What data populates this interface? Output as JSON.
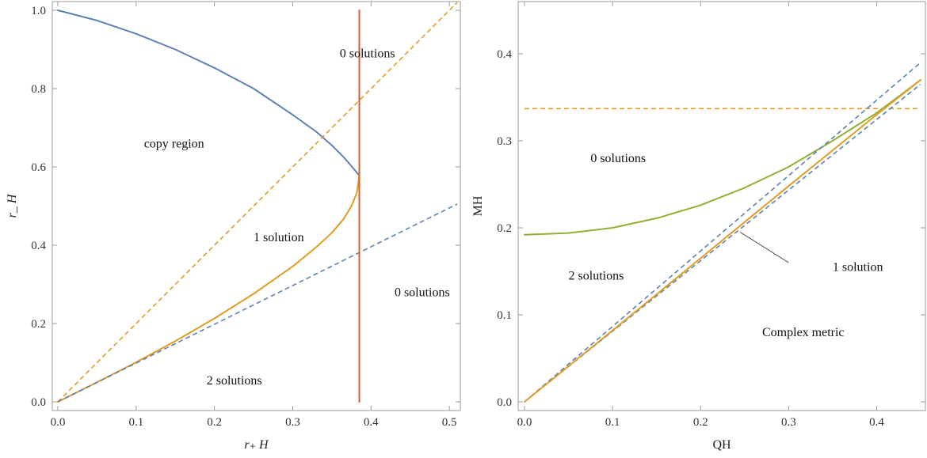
{
  "chart_data": [
    {
      "type": "line",
      "xlabel": "r₊ H",
      "ylabel": "r_ H",
      "xlim": [
        0,
        0.51
      ],
      "ylim": [
        0,
        1.0
      ],
      "xticks": [
        "0.0",
        "0.1",
        "0.2",
        "0.3",
        "0.4",
        "0.5"
      ],
      "yticks": [
        "0.0",
        "0.2",
        "0.4",
        "0.6",
        "0.8",
        "1.0"
      ],
      "series": [
        {
          "color": "#5e81b5",
          "style": "solid",
          "x": [
            0,
            0.05,
            0.1,
            0.15,
            0.2,
            0.25,
            0.3,
            0.33,
            0.35,
            0.365,
            0.375,
            0.382,
            0.385
          ],
          "y": [
            1.0,
            0.974,
            0.94,
            0.9,
            0.853,
            0.8,
            0.733,
            0.69,
            0.655,
            0.625,
            0.602,
            0.585,
            0.578
          ]
        },
        {
          "color": "#e19c24",
          "style": "solid",
          "x": [
            0,
            0.05,
            0.1,
            0.15,
            0.2,
            0.25,
            0.3,
            0.33,
            0.35,
            0.365,
            0.375,
            0.382,
            0.385
          ],
          "y": [
            0,
            0.05,
            0.101,
            0.155,
            0.213,
            0.276,
            0.346,
            0.395,
            0.432,
            0.467,
            0.5,
            0.535,
            0.578
          ]
        },
        {
          "color": "#e19c24",
          "style": "dashed",
          "x": [
            0,
            0.51
          ],
          "y": [
            0,
            1.02
          ]
        },
        {
          "color": "#5e81b5",
          "style": "dashed",
          "x": [
            0,
            0.51
          ],
          "y": [
            0,
            0.505
          ]
        },
        {
          "color": "#d65f34",
          "style": "solid",
          "x": [
            0.385,
            0.385
          ],
          "y": [
            0,
            1.0
          ]
        }
      ],
      "annotations": [
        {
          "text": "0 solutions",
          "x": 0.36,
          "y": 0.89
        },
        {
          "text": "copy region",
          "x": 0.11,
          "y": 0.66
        },
        {
          "text": "1 solution",
          "x": 0.25,
          "y": 0.42
        },
        {
          "text": "0 solutions",
          "x": 0.43,
          "y": 0.28
        },
        {
          "text": "2 solutions",
          "x": 0.19,
          "y": 0.055
        }
      ]
    },
    {
      "type": "line",
      "xlabel": "QH",
      "ylabel": "MH",
      "xlim": [
        0,
        0.45
      ],
      "ylim": [
        0,
        0.45
      ],
      "xticks": [
        "0.0",
        "0.1",
        "0.2",
        "0.3",
        "0.4"
      ],
      "yticks": [
        "0.0",
        "0.1",
        "0.2",
        "0.3",
        "0.4"
      ],
      "series": [
        {
          "color": "#e19c24",
          "style": "dashed",
          "x": [
            0,
            0.45
          ],
          "y": [
            0.337,
            0.337
          ]
        },
        {
          "color": "#8fb032",
          "style": "solid",
          "x": [
            0,
            0.05,
            0.1,
            0.15,
            0.2,
            0.25,
            0.3,
            0.35,
            0.4,
            0.45
          ],
          "y": [
            0.192,
            0.194,
            0.2,
            0.211,
            0.226,
            0.246,
            0.27,
            0.3,
            0.332,
            0.37
          ]
        },
        {
          "color": "#5e81b5",
          "style": "dashed",
          "x": [
            0,
            0.45
          ],
          "y": [
            0,
            0.39
          ]
        },
        {
          "color": "#5e81b5",
          "style": "dashed",
          "x": [
            0,
            0.45
          ],
          "y": [
            0,
            0.365
          ]
        },
        {
          "color": "#e19c24",
          "style": "solid",
          "x": [
            0,
            0.1,
            0.2,
            0.3,
            0.4,
            0.45
          ],
          "y": [
            0,
            0.082,
            0.165,
            0.248,
            0.33,
            0.37
          ]
        }
      ],
      "annotations": [
        {
          "text": "0 solutions",
          "x": 0.075,
          "y": 0.28
        },
        {
          "text": "2 solutions",
          "x": 0.05,
          "y": 0.145
        },
        {
          "text": "1 solution",
          "x": 0.35,
          "y": 0.155
        },
        {
          "text": "Complex metric",
          "x": 0.27,
          "y": 0.08
        }
      ],
      "pointer": {
        "from": [
          0.3,
          0.16
        ],
        "to": [
          0.245,
          0.195
        ]
      }
    }
  ]
}
